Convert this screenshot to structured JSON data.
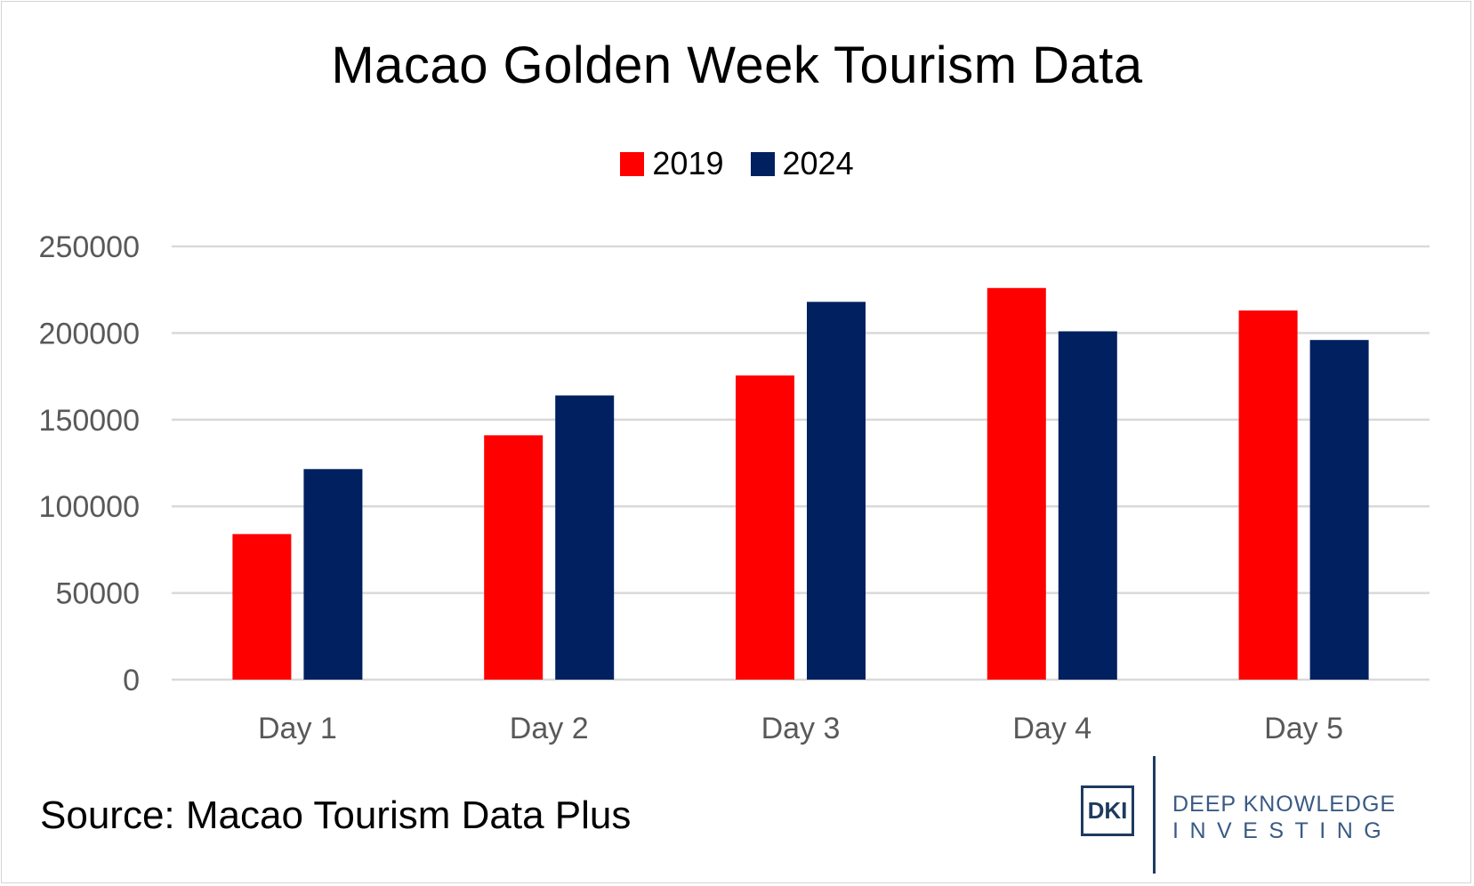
{
  "chart_data": {
    "type": "bar",
    "title": "Macao Golden Week Tourism Data",
    "categories": [
      "Day 1",
      "Day 2",
      "Day 3",
      "Day 4",
      "Day 5"
    ],
    "series": [
      {
        "name": "2019",
        "color": "#ff0000",
        "values": [
          84000,
          141000,
          175500,
          226000,
          213000
        ]
      },
      {
        "name": "2024",
        "color": "#002060",
        "values": [
          121500,
          164000,
          218000,
          201000,
          196000
        ]
      }
    ],
    "ylim": [
      0,
      250000
    ],
    "yticks": [
      "0",
      "50000",
      "100000",
      "150000",
      "200000",
      "250000"
    ],
    "ytick_values": [
      0,
      50000,
      100000,
      150000,
      200000,
      250000
    ],
    "grid": true,
    "legend_position": "top-center",
    "xlabel": "",
    "ylabel": ""
  },
  "source": "Source: Macao Tourism Data Plus",
  "logo": {
    "mark": "DKI",
    "line1": "DEEP KNOWLEDGE",
    "line2": "INVESTING"
  },
  "colors": {
    "grid": "#d9d9d9",
    "tick_text": "#595959",
    "logo": "#1f3a5f"
  }
}
